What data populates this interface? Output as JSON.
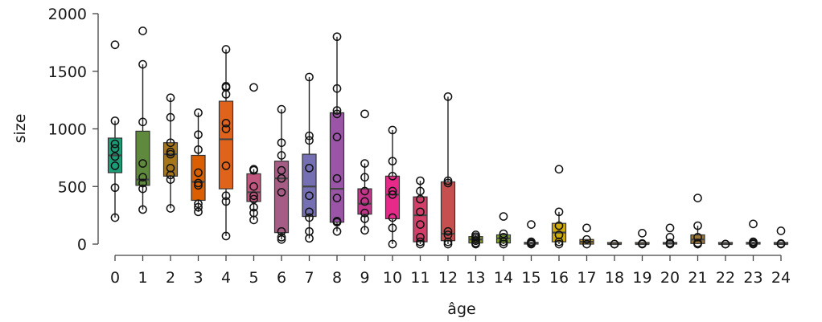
{
  "chart_data": {
    "type": "boxplot",
    "xlabel": "âge",
    "ylabel": "size",
    "ylim": [
      0,
      2000
    ],
    "yticks": [
      0,
      500,
      1000,
      1500,
      2000
    ],
    "legend": "none",
    "grid": false,
    "categories": [
      "0",
      "1",
      "2",
      "3",
      "4",
      "5",
      "6",
      "7",
      "8",
      "9",
      "10",
      "11",
      "12",
      "13",
      "14",
      "15",
      "16",
      "17",
      "18",
      "19",
      "20",
      "21",
      "22",
      "23",
      "24"
    ],
    "boxes": [
      {
        "age": "0",
        "color": "#1b9e77",
        "whisker_low": 230,
        "q1": 620,
        "median": 770,
        "q3": 920,
        "whisker_high": 1070,
        "points": [
          1730,
          1070,
          870,
          830,
          760,
          680,
          490,
          230
        ]
      },
      {
        "age": "1",
        "color": "#5f8a3e",
        "whisker_low": 300,
        "q1": 510,
        "median": 560,
        "q3": 980,
        "whisker_high": 1560,
        "points": [
          1850,
          1560,
          1060,
          700,
          580,
          530,
          480,
          300
        ]
      },
      {
        "age": "2",
        "color": "#a6761d",
        "whisker_low": 310,
        "q1": 590,
        "median": 780,
        "q3": 880,
        "whisker_high": 1270,
        "points": [
          1270,
          1100,
          880,
          800,
          780,
          660,
          600,
          560,
          310
        ]
      },
      {
        "age": "3",
        "color": "#d95f02",
        "whisker_low": 280,
        "q1": 380,
        "median": 540,
        "q3": 770,
        "whisker_high": 1140,
        "points": [
          1140,
          950,
          820,
          620,
          530,
          510,
          350,
          320,
          280
        ]
      },
      {
        "age": "4",
        "color": "#e0631b",
        "whisker_low": 70,
        "q1": 480,
        "median": 910,
        "q3": 1240,
        "whisker_high": 1690,
        "points": [
          1690,
          1370,
          1360,
          1300,
          1050,
          1000,
          680,
          420,
          370,
          70
        ]
      },
      {
        "age": "5",
        "color": "#c0577e",
        "whisker_low": 210,
        "q1": 370,
        "median": 450,
        "q3": 610,
        "whisker_high": 650,
        "points": [
          1360,
          650,
          640,
          500,
          420,
          390,
          320,
          270,
          210
        ]
      },
      {
        "age": "6",
        "color": "#a65d85",
        "whisker_low": 40,
        "q1": 100,
        "median": 570,
        "q3": 720,
        "whisker_high": 1170,
        "points": [
          1170,
          880,
          770,
          640,
          570,
          450,
          110,
          60,
          40
        ]
      },
      {
        "age": "7",
        "color": "#7570b3",
        "whisker_low": 50,
        "q1": 240,
        "median": 500,
        "q3": 780,
        "whisker_high": 1450,
        "points": [
          1450,
          940,
          900,
          660,
          420,
          280,
          230,
          110,
          50
        ]
      },
      {
        "age": "8",
        "color": "#9a55a6",
        "whisker_low": 110,
        "q1": 190,
        "median": 480,
        "q3": 1140,
        "whisker_high": 1800,
        "points": [
          1800,
          1350,
          1160,
          1130,
          930,
          570,
          400,
          200,
          190,
          110
        ]
      },
      {
        "age": "9",
        "color": "#c2378b",
        "whisker_low": 120,
        "q1": 260,
        "median": 350,
        "q3": 480,
        "whisker_high": 700,
        "points": [
          1130,
          700,
          580,
          460,
          370,
          270,
          220,
          120
        ]
      },
      {
        "age": "10",
        "color": "#e7298a",
        "whisker_low": 0,
        "q1": 220,
        "median": 430,
        "q3": 590,
        "whisker_high": 990,
        "points": [
          990,
          720,
          590,
          460,
          430,
          230,
          140,
          0
        ]
      },
      {
        "age": "11",
        "color": "#d43f6a",
        "whisker_low": 0,
        "q1": 20,
        "median": 250,
        "q3": 410,
        "whisker_high": 550,
        "points": [
          550,
          460,
          390,
          280,
          170,
          60,
          20,
          0
        ]
      },
      {
        "age": "12",
        "color": "#c6504f",
        "whisker_low": 0,
        "q1": 30,
        "median": 90,
        "q3": 540,
        "whisker_high": 1280,
        "points": [
          1280,
          550,
          530,
          110,
          80,
          20,
          0
        ]
      },
      {
        "age": "13",
        "color": "#83a31e",
        "whisker_low": 0,
        "q1": 10,
        "median": 40,
        "q3": 65,
        "whisker_high": 80,
        "points": [
          80,
          65,
          50,
          30,
          10,
          0
        ]
      },
      {
        "age": "14",
        "color": "#7ca62a",
        "whisker_low": 0,
        "q1": 10,
        "median": 50,
        "q3": 80,
        "whisker_high": 90,
        "points": [
          240,
          90,
          60,
          20,
          0
        ]
      },
      {
        "age": "15",
        "color": "#a6a21a",
        "whisker_low": 0,
        "q1": 0,
        "median": 5,
        "q3": 15,
        "whisker_high": 20,
        "points": [
          170,
          20,
          10,
          0
        ]
      },
      {
        "age": "16",
        "color": "#cfaa0b",
        "whisker_low": 0,
        "q1": 20,
        "median": 100,
        "q3": 180,
        "whisker_high": 280,
        "points": [
          650,
          280,
          160,
          80,
          20,
          0
        ]
      },
      {
        "age": "17",
        "color": "#c79418",
        "whisker_low": 0,
        "q1": 0,
        "median": 20,
        "q3": 40,
        "whisker_high": 40,
        "points": [
          140,
          40,
          0
        ]
      },
      {
        "age": "18",
        "color": "#b08a35",
        "whisker_low": 0,
        "q1": 0,
        "median": 0,
        "q3": 3,
        "whisker_high": 3,
        "points": [
          0,
          0
        ]
      },
      {
        "age": "19",
        "color": "#9f7f45",
        "whisker_low": 0,
        "q1": 0,
        "median": 0,
        "q3": 5,
        "whisker_high": 5,
        "points": [
          95,
          5,
          0
        ]
      },
      {
        "age": "20",
        "color": "#977b52",
        "whisker_low": 0,
        "q1": 0,
        "median": 5,
        "q3": 10,
        "whisker_high": 10,
        "points": [
          140,
          60,
          10,
          0
        ]
      },
      {
        "age": "21",
        "color": "#9c7838",
        "whisker_low": 0,
        "q1": 5,
        "median": 40,
        "q3": 80,
        "whisker_high": 160,
        "points": [
          400,
          160,
          60,
          10,
          0
        ]
      },
      {
        "age": "22",
        "color": "#877561",
        "whisker_low": 0,
        "q1": 0,
        "median": 0,
        "q3": 3,
        "whisker_high": 3,
        "points": [
          0,
          0
        ]
      },
      {
        "age": "23",
        "color": "#7a7266",
        "whisker_low": 0,
        "q1": 0,
        "median": 5,
        "q3": 15,
        "whisker_high": 20,
        "points": [
          175,
          20,
          10,
          0
        ]
      },
      {
        "age": "24",
        "color": "#666666",
        "whisker_low": 0,
        "q1": 0,
        "median": 0,
        "q3": 5,
        "whisker_high": 5,
        "points": [
          115,
          5,
          0
        ]
      }
    ]
  }
}
